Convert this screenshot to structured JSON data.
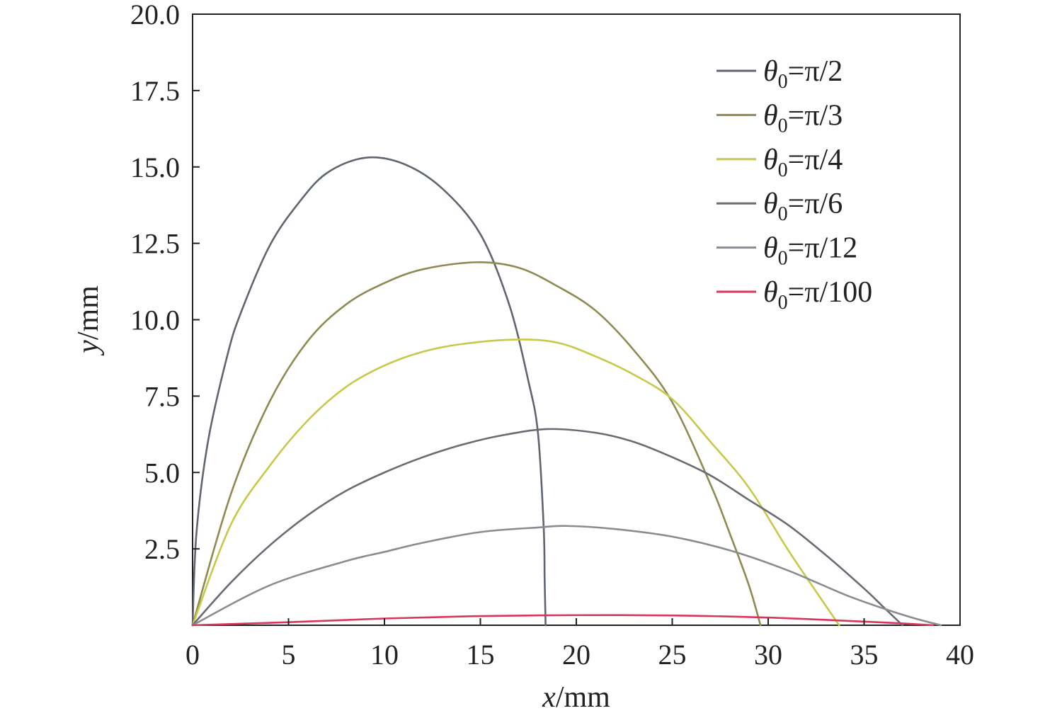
{
  "chart_data": {
    "type": "line",
    "xlabel_var": "x",
    "xlabel_unit": "/mm",
    "ylabel_var": "y",
    "ylabel_unit": "/mm",
    "xlim": [
      0,
      40
    ],
    "ylim": [
      0,
      20
    ],
    "x_ticks": [
      0,
      5,
      10,
      15,
      20,
      25,
      30,
      35,
      40
    ],
    "x_tick_labels": [
      "0",
      "5",
      "10",
      "15",
      "20",
      "25",
      "30",
      "35",
      "40"
    ],
    "y_ticks": [
      2.5,
      5,
      7.5,
      10,
      12.5,
      15,
      17.5,
      20
    ],
    "y_tick_labels": [
      "2.5",
      "5.0",
      "7.5",
      "10.0",
      "12.5",
      "15.0",
      "17.5",
      "20.0"
    ],
    "grid": false,
    "legend_position": "top-right",
    "series": [
      {
        "name_var": "θ",
        "name_sub": "0",
        "name_val": "=π/2",
        "color": "#5f6670",
        "points": [
          [
            0,
            0
          ],
          [
            0.2,
            3.0
          ],
          [
            0.8,
            6.0
          ],
          [
            1.8,
            8.8
          ],
          [
            2.5,
            10.2
          ],
          [
            4.0,
            12.4
          ],
          [
            5.5,
            13.8
          ],
          [
            7.0,
            14.8
          ],
          [
            9.0,
            15.3
          ],
          [
            11.0,
            15.1
          ],
          [
            13.0,
            14.3
          ],
          [
            15.0,
            12.8
          ],
          [
            16.5,
            10.5
          ],
          [
            17.5,
            8.0
          ],
          [
            18.0,
            6.3
          ],
          [
            18.3,
            3.2
          ],
          [
            18.35,
            1.5
          ],
          [
            18.4,
            0
          ]
        ]
      },
      {
        "name_var": "θ",
        "name_sub": "0",
        "name_val": "=π/3",
        "color": "#8f8a52",
        "points": [
          [
            0,
            0
          ],
          [
            2.0,
            4.3
          ],
          [
            4.0,
            7.3
          ],
          [
            6.0,
            9.3
          ],
          [
            8.0,
            10.5
          ],
          [
            10.0,
            11.2
          ],
          [
            12.0,
            11.65
          ],
          [
            14.8,
            11.88
          ],
          [
            17.0,
            11.7
          ],
          [
            19.0,
            11.1
          ],
          [
            21.0,
            10.3
          ],
          [
            23.0,
            9.0
          ],
          [
            25.0,
            7.3
          ],
          [
            27.0,
            4.6
          ],
          [
            28.0,
            3.0
          ],
          [
            29.0,
            1.3
          ],
          [
            29.6,
            0
          ]
        ]
      },
      {
        "name_var": "θ",
        "name_sub": "0",
        "name_val": "=π/4",
        "color": "#c8c84a",
        "points": [
          [
            0,
            0
          ],
          [
            2.0,
            3.3
          ],
          [
            4.0,
            5.2
          ],
          [
            6.0,
            6.7
          ],
          [
            8.0,
            7.8
          ],
          [
            10.0,
            8.5
          ],
          [
            12.0,
            8.95
          ],
          [
            14.0,
            9.2
          ],
          [
            16.8,
            9.35
          ],
          [
            19.0,
            9.25
          ],
          [
            21.0,
            8.8
          ],
          [
            23.0,
            8.2
          ],
          [
            25.0,
            7.4
          ],
          [
            27.0,
            6.0
          ],
          [
            29.0,
            4.5
          ],
          [
            31.0,
            2.5
          ],
          [
            32.5,
            1.1
          ],
          [
            33.7,
            0
          ]
        ]
      },
      {
        "name_var": "θ",
        "name_sub": "0",
        "name_val": "=π/6",
        "color": "#6a6c74",
        "points": [
          [
            0,
            0
          ],
          [
            2.0,
            1.4
          ],
          [
            4.0,
            2.6
          ],
          [
            6.0,
            3.6
          ],
          [
            8.0,
            4.4
          ],
          [
            10.0,
            5.0
          ],
          [
            12.0,
            5.5
          ],
          [
            14.0,
            5.9
          ],
          [
            16.0,
            6.2
          ],
          [
            18.5,
            6.42
          ],
          [
            21.0,
            6.3
          ],
          [
            23.0,
            6.0
          ],
          [
            25.0,
            5.5
          ],
          [
            27.0,
            4.9
          ],
          [
            29.0,
            4.1
          ],
          [
            31.0,
            3.3
          ],
          [
            33.0,
            2.3
          ],
          [
            35.0,
            1.2
          ],
          [
            36.0,
            0.6
          ],
          [
            37.0,
            0
          ]
        ]
      },
      {
        "name_var": "θ",
        "name_sub": "0",
        "name_val": "=π/12",
        "color": "#8a8c92",
        "points": [
          [
            0,
            0
          ],
          [
            4.0,
            1.3
          ],
          [
            8.0,
            2.1
          ],
          [
            10.0,
            2.4
          ],
          [
            12.0,
            2.7
          ],
          [
            15.0,
            3.05
          ],
          [
            18.0,
            3.2
          ],
          [
            19.5,
            3.25
          ],
          [
            22.0,
            3.15
          ],
          [
            25.0,
            2.9
          ],
          [
            28.0,
            2.45
          ],
          [
            31.0,
            1.8
          ],
          [
            34.0,
            1.0
          ],
          [
            36.0,
            0.55
          ],
          [
            37.5,
            0.25
          ],
          [
            39.0,
            0
          ]
        ]
      },
      {
        "name_var": "θ",
        "name_sub": "0",
        "name_val": "=π/100",
        "color": "#d8365e",
        "points": [
          [
            0,
            0
          ],
          [
            5.0,
            0.1
          ],
          [
            10.0,
            0.22
          ],
          [
            15.0,
            0.3
          ],
          [
            20.0,
            0.33
          ],
          [
            25.0,
            0.32
          ],
          [
            30.0,
            0.25
          ],
          [
            35.0,
            0.12
          ],
          [
            37.0,
            0.06
          ],
          [
            38.6,
            0
          ]
        ]
      }
    ]
  }
}
